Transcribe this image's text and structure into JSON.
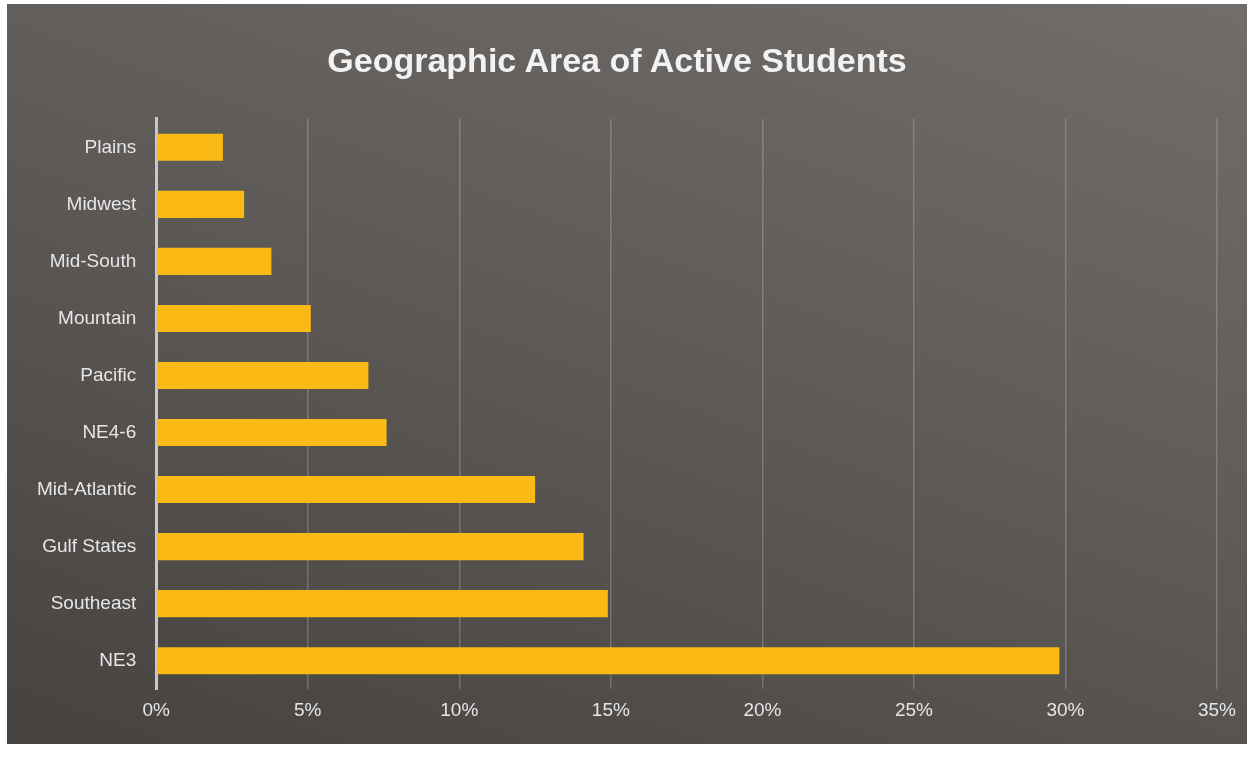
{
  "chart_data": {
    "type": "bar",
    "orientation": "horizontal",
    "title": "Geographic Area of Active Students",
    "categories": [
      "Plains",
      "Midwest",
      "Mid-South",
      "Mountain",
      "Pacific",
      "NE4-6",
      "Mid-Atlantic",
      "Gulf States",
      "Southeast",
      "NE3"
    ],
    "values": [
      2.2,
      2.9,
      3.8,
      5.1,
      7.0,
      7.6,
      12.5,
      14.1,
      14.9,
      29.8
    ],
    "color": "#fbb914",
    "xlim": [
      0,
      35
    ],
    "xticks": [
      {
        "value": 0,
        "label": "0%"
      },
      {
        "value": 5,
        "label": "5%"
      },
      {
        "value": 10,
        "label": "10%"
      },
      {
        "value": 15,
        "label": "15%"
      },
      {
        "value": 20,
        "label": "20%"
      },
      {
        "value": 25,
        "label": "25%"
      },
      {
        "value": 30,
        "label": "30%"
      },
      {
        "value": 35,
        "label": "35%"
      }
    ],
    "grid": "x",
    "legend": false
  }
}
